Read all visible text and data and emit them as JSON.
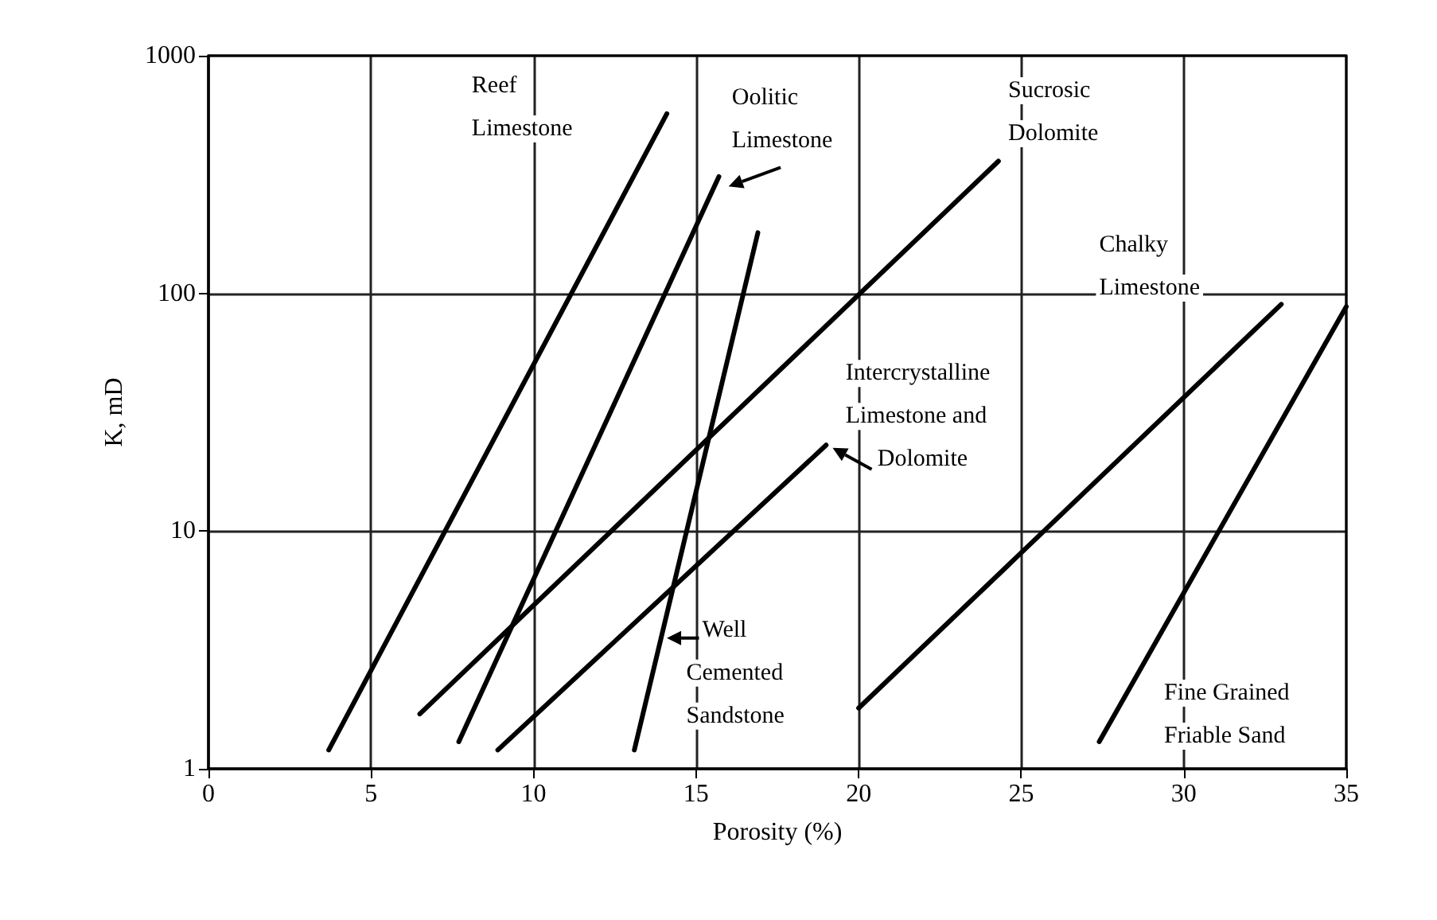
{
  "chart_data": {
    "type": "line",
    "xlabel": "Porosity (%)",
    "ylabel": "K, mD",
    "xlim": [
      0,
      35
    ],
    "xticks": [
      0,
      5,
      10,
      15,
      20,
      25,
      30,
      35
    ],
    "ylim": [
      1,
      1000
    ],
    "yticks": [
      1,
      10,
      100,
      1000
    ],
    "log": "y",
    "grid": true,
    "marker": "none",
    "line_style": "solid",
    "series": [
      {
        "name": "Reef Limestone",
        "color": "#000000",
        "x": [
          3.7,
          14.1
        ],
        "values": [
          1.2,
          570
        ]
      },
      {
        "name": "Oolitic Limestone",
        "color": "#000000",
        "x": [
          7.7,
          15.7
        ],
        "values": [
          1.3,
          310
        ]
      },
      {
        "name": "Sucrosic Dolomite",
        "color": "#000000",
        "x": [
          6.5,
          24.3
        ],
        "values": [
          1.7,
          360
        ]
      },
      {
        "name": "Chalky Limestone",
        "color": "#000000",
        "x": [
          20,
          33
        ],
        "values": [
          1.8,
          90
        ]
      },
      {
        "name": "Intercrystalline Limestone and Dolomite",
        "color": "#000000",
        "x": [
          8.9,
          19
        ],
        "values": [
          1.2,
          23
        ]
      },
      {
        "name": "Well Cemented Sandstone",
        "color": "#000000",
        "x": [
          13.1,
          16.9
        ],
        "values": [
          1.2,
          180
        ]
      },
      {
        "name": "Fine Grained Friable Sand",
        "color": "#000000",
        "x": [
          27.4,
          35
        ],
        "values": [
          1.3,
          88
        ]
      }
    ]
  }
}
